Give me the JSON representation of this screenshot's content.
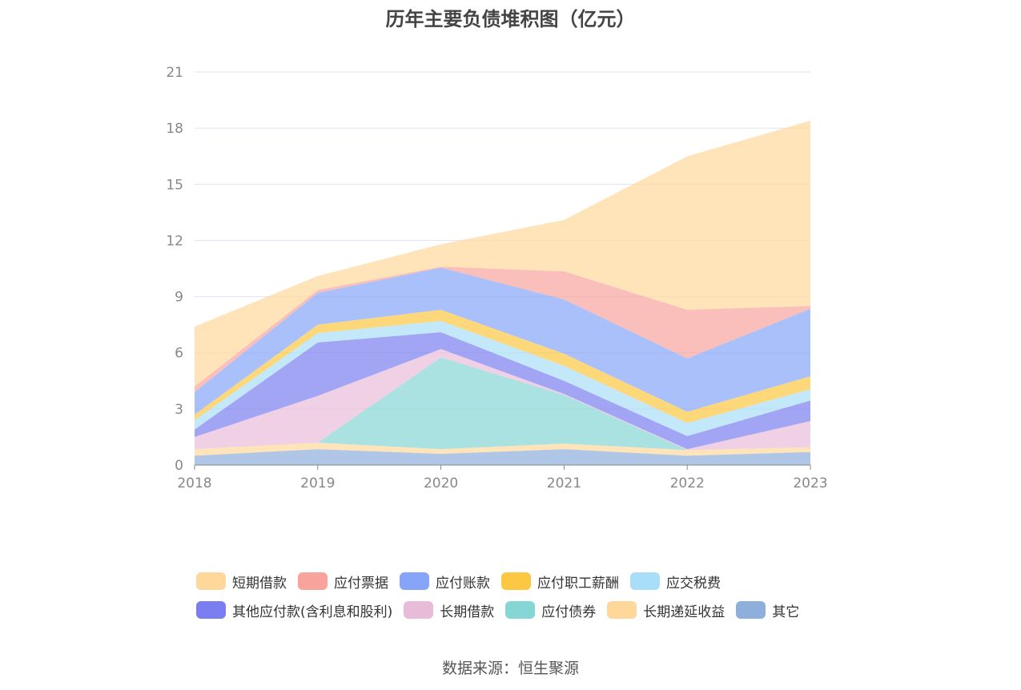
{
  "chart_data": {
    "type": "area",
    "stacked": true,
    "title": "历年主要负债堆积图（亿元）",
    "source": "数据来源：恒生聚源",
    "categories": [
      "2018",
      "2019",
      "2020",
      "2021",
      "2022",
      "2023"
    ],
    "ylim": [
      0,
      21
    ],
    "yticks": [
      "0",
      "3",
      "6",
      "9",
      "12",
      "15",
      "18",
      "21"
    ],
    "grid": true,
    "legend_position": "bottom",
    "series": [
      {
        "name": "其它",
        "color": "#8eaedc",
        "values": [
          0.5,
          0.85,
          0.6,
          0.85,
          0.5,
          0.7
        ]
      },
      {
        "name": "长期递延收益",
        "color": "#fdd89a",
        "values": [
          0.35,
          0.35,
          0.25,
          0.3,
          0.3,
          0.25
        ]
      },
      {
        "name": "应付债券",
        "color": "#86d6d6",
        "values": [
          0,
          0,
          4.9,
          2.6,
          0,
          0
        ]
      },
      {
        "name": "长期借款",
        "color": "#e8bcd9",
        "values": [
          0.65,
          2.5,
          0.45,
          0.05,
          0.05,
          1.4
        ]
      },
      {
        "name": "其他应付款(含利息和股利)",
        "color": "#7b7ef0",
        "values": [
          0.4,
          2.85,
          0.9,
          0.7,
          0.7,
          1.1
        ]
      },
      {
        "name": "应交税费",
        "color": "#a8def7",
        "values": [
          0.5,
          0.5,
          0.6,
          0.8,
          0.7,
          0.6
        ]
      },
      {
        "name": "应付职工薪酬",
        "color": "#fcc843",
        "values": [
          0.3,
          0.45,
          0.6,
          0.65,
          0.6,
          0.7
        ]
      },
      {
        "name": "应付账款",
        "color": "#86a5f8",
        "values": [
          1.2,
          1.7,
          2.25,
          2.9,
          2.85,
          3.6
        ]
      },
      {
        "name": "应付票据",
        "color": "#f8a49d",
        "values": [
          0.3,
          0.15,
          0.05,
          1.5,
          2.6,
          0.15
        ]
      },
      {
        "name": "短期借款",
        "color": "#fdd89a",
        "values": [
          3.2,
          0.75,
          1.2,
          2.75,
          8.2,
          9.9
        ]
      }
    ]
  },
  "legend": {
    "row1": [
      {
        "label": "短期借款",
        "color": "#fdd89a"
      },
      {
        "label": "应付票据",
        "color": "#f8a49d"
      },
      {
        "label": "应付账款",
        "color": "#86a5f8"
      },
      {
        "label": "应付职工薪酬",
        "color": "#fcc843"
      },
      {
        "label": "应交税费",
        "color": "#a8def7"
      }
    ],
    "row2": [
      {
        "label": "其他应付款(含利息和股利)",
        "color": "#7b7ef0"
      },
      {
        "label": "长期借款",
        "color": "#e8bcd9"
      },
      {
        "label": "应付债券",
        "color": "#86d6d6"
      },
      {
        "label": "长期递延收益",
        "color": "#fdd89a"
      },
      {
        "label": "其它",
        "color": "#8eaedc"
      }
    ]
  }
}
